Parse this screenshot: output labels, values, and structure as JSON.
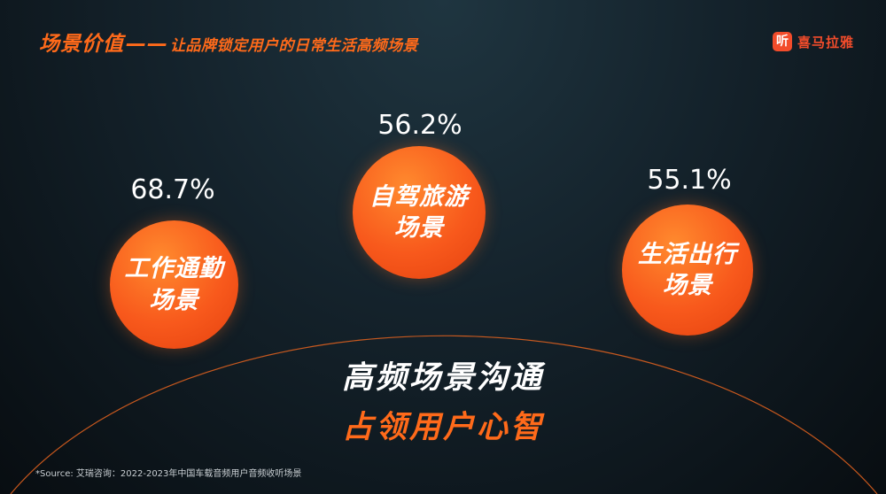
{
  "header": {
    "title_main": "场景价值",
    "title_sep": "——",
    "title_sub": "让品牌锁定用户的日常生活高频场景"
  },
  "brand": {
    "badge_glyph": "听",
    "name": "喜马拉雅",
    "color": "#f24c2b"
  },
  "scenes": [
    {
      "line1": "工作通勤",
      "line2": "场景",
      "percent": "68.7%"
    },
    {
      "line1": "自驾旅游",
      "line2": "场景",
      "percent": "56.2%"
    },
    {
      "line1": "生活出行",
      "line2": "场景",
      "percent": "55.1%"
    }
  ],
  "tagline": {
    "line1": "高频场景沟通",
    "line2": "占领用户心智"
  },
  "footer": {
    "source": "*Source: 艾瑞咨询：2022-2023年中国车载音频用户音频收听场景"
  },
  "colors": {
    "accent": "#ff6a1a",
    "arc": "#e8641e"
  }
}
